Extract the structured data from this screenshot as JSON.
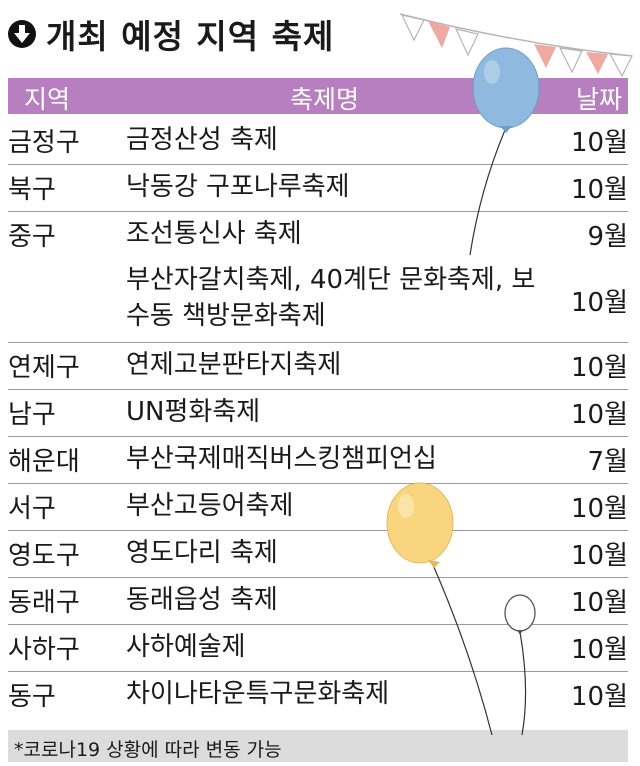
{
  "title": "개최 예정 지역 축제",
  "icons": {
    "title": "down-arrow-circle-icon"
  },
  "colors": {
    "header_bg": "#b77fbf",
    "footer_bg": "#dcdcdc",
    "balloon_blue": "#8fb9de",
    "balloon_yellow": "#f8d57e",
    "flag_pink": "#f0a9a0"
  },
  "table": {
    "headers": {
      "region": "지역",
      "festival": "축제명",
      "date": "날짜"
    },
    "rows": [
      {
        "region": "금정구",
        "festival": "금정산성 축제",
        "date": "10월"
      },
      {
        "region": "북구",
        "festival": "낙동강 구포나루축제",
        "date": "10월"
      },
      {
        "region": "중구",
        "festival": "조선통신사 축제",
        "date": "9월"
      },
      {
        "region": "",
        "festival": "부산자갈치축제, 40계단 문화축제, 보수동 책방문화축제",
        "date": "10월"
      },
      {
        "region": "연제구",
        "festival": "연제고분판타지축제",
        "date": "10월"
      },
      {
        "region": "남구",
        "festival": "UN평화축제",
        "date": "10월"
      },
      {
        "region": "해운대",
        "festival": "부산국제매직버스킹챔피언십",
        "date": "7월"
      },
      {
        "region": "서구",
        "festival": "부산고등어축제",
        "date": "10월"
      },
      {
        "region": "영도구",
        "festival": "영도다리 축제",
        "date": "10월"
      },
      {
        "region": "동래구",
        "festival": "동래읍성 축제",
        "date": "10월"
      },
      {
        "region": "사하구",
        "festival": "사하예술제",
        "date": "10월"
      },
      {
        "region": "동구",
        "festival": "차이나타운특구문화축제",
        "date": "10월"
      }
    ]
  },
  "footer_note": "*코로나19 상황에 따라 변동 가능"
}
